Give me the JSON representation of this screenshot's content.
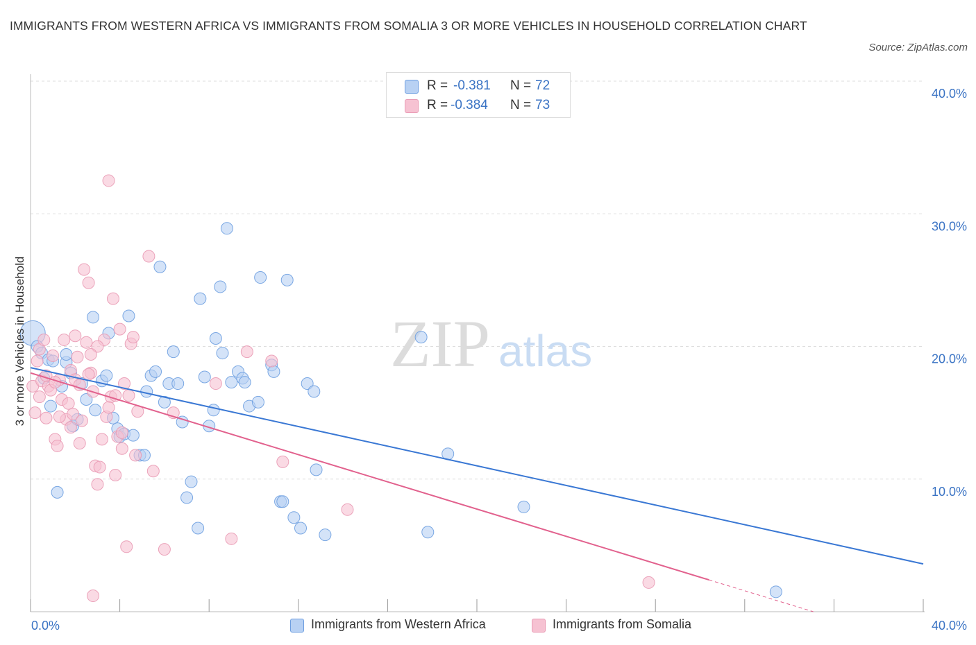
{
  "header": {
    "title": "IMMIGRANTS FROM WESTERN AFRICA VS IMMIGRANTS FROM SOMALIA 3 OR MORE VEHICLES IN HOUSEHOLD CORRELATION CHART",
    "source": "Source: ZipAtlas.com"
  },
  "watermark": {
    "zip": "ZIP",
    "atlas": "atlas"
  },
  "legend": {
    "rows": [
      {
        "r_label": "R =",
        "r_value": "-0.381",
        "n_label": "N =",
        "n_value": "72"
      },
      {
        "r_label": "R =",
        "r_value": "-0.384",
        "n_label": "N =",
        "n_value": "73"
      }
    ]
  },
  "colors": {
    "blue_fill": "#b8d1f3",
    "blue_stroke": "#6d9ee0",
    "blue_line": "#3a78d4",
    "pink_fill": "#f6c2d2",
    "pink_stroke": "#e99ab4",
    "pink_line": "#e2628e",
    "axis_text": "#3a73c4",
    "grid": "#dddddd"
  },
  "chart_data": {
    "type": "scatter",
    "title": "IMMIGRANTS FROM WESTERN AFRICA VS IMMIGRANTS FROM SOMALIA 3 OR MORE VEHICLES IN HOUSEHOLD CORRELATION CHART",
    "xlabel": "",
    "ylabel": "3 or more Vehicles in Household",
    "xlim": [
      0,
      40
    ],
    "ylim": [
      0,
      40
    ],
    "x_tick_labels": [
      "0.0%",
      "40.0%"
    ],
    "y_ticks": [
      10,
      20,
      30,
      40
    ],
    "y_tick_labels": [
      "10.0%",
      "20.0%",
      "30.0%",
      "40.0%"
    ],
    "grid": true,
    "legend_position": "top-center",
    "series": [
      {
        "name": "Immigrants from Western Africa",
        "r": -0.381,
        "n": 72,
        "trend": {
          "x": [
            0,
            40
          ],
          "y": [
            18.4,
            3.6
          ]
        },
        "points": [
          [
            0.1,
            21.0
          ],
          [
            0.3,
            20.0
          ],
          [
            0.5,
            19.5
          ],
          [
            0.6,
            17.6
          ],
          [
            0.8,
            19.0
          ],
          [
            0.9,
            15.5
          ],
          [
            1.0,
            18.9
          ],
          [
            1.2,
            9.0
          ],
          [
            1.4,
            17.0
          ],
          [
            1.6,
            18.8
          ],
          [
            1.8,
            18.0
          ],
          [
            1.9,
            14.0
          ],
          [
            2.1,
            14.5
          ],
          [
            2.3,
            17.2
          ],
          [
            2.5,
            16.0
          ],
          [
            2.8,
            22.2
          ],
          [
            2.9,
            15.2
          ],
          [
            3.2,
            17.4
          ],
          [
            3.4,
            17.8
          ],
          [
            3.5,
            21.0
          ],
          [
            3.7,
            14.6
          ],
          [
            3.9,
            13.8
          ],
          [
            4.0,
            13.2
          ],
          [
            4.2,
            13.4
          ],
          [
            4.4,
            22.3
          ],
          [
            4.6,
            13.3
          ],
          [
            4.9,
            11.8
          ],
          [
            5.1,
            11.8
          ],
          [
            5.2,
            16.6
          ],
          [
            5.4,
            17.8
          ],
          [
            5.6,
            18.1
          ],
          [
            5.8,
            26.0
          ],
          [
            6.0,
            15.8
          ],
          [
            6.2,
            17.2
          ],
          [
            6.4,
            19.6
          ],
          [
            6.6,
            17.2
          ],
          [
            6.8,
            14.3
          ],
          [
            7.0,
            8.6
          ],
          [
            7.2,
            9.8
          ],
          [
            7.5,
            6.3
          ],
          [
            7.6,
            23.6
          ],
          [
            7.8,
            17.7
          ],
          [
            8.0,
            14.0
          ],
          [
            8.2,
            15.2
          ],
          [
            8.3,
            20.6
          ],
          [
            8.5,
            24.5
          ],
          [
            8.6,
            19.5
          ],
          [
            8.8,
            28.9
          ],
          [
            9.0,
            17.3
          ],
          [
            9.3,
            18.1
          ],
          [
            9.5,
            17.6
          ],
          [
            9.6,
            17.3
          ],
          [
            9.8,
            15.5
          ],
          [
            10.2,
            15.8
          ],
          [
            10.3,
            25.2
          ],
          [
            10.8,
            18.6
          ],
          [
            10.9,
            18.1
          ],
          [
            11.2,
            8.3
          ],
          [
            11.3,
            8.3
          ],
          [
            11.5,
            25.0
          ],
          [
            11.8,
            7.1
          ],
          [
            12.1,
            6.3
          ],
          [
            12.4,
            17.2
          ],
          [
            12.7,
            16.6
          ],
          [
            12.8,
            10.7
          ],
          [
            13.2,
            5.8
          ],
          [
            17.5,
            20.7
          ],
          [
            17.8,
            6.0
          ],
          [
            18.7,
            11.9
          ],
          [
            22.1,
            7.9
          ],
          [
            33.4,
            1.5
          ],
          [
            1.6,
            19.4
          ]
        ]
      },
      {
        "name": "Immigrants from Somalia",
        "r": -0.384,
        "n": 73,
        "trend": {
          "x": [
            0,
            30.4
          ],
          "y": [
            18.0,
            2.4
          ]
        },
        "points": [
          [
            0.1,
            17.0
          ],
          [
            0.2,
            15.0
          ],
          [
            0.3,
            18.9
          ],
          [
            0.4,
            19.8
          ],
          [
            0.5,
            17.4
          ],
          [
            0.6,
            20.5
          ],
          [
            0.7,
            14.6
          ],
          [
            0.8,
            17.0
          ],
          [
            0.9,
            16.7
          ],
          [
            1.0,
            19.3
          ],
          [
            1.1,
            13.0
          ],
          [
            1.2,
            12.5
          ],
          [
            1.3,
            17.5
          ],
          [
            1.4,
            16.0
          ],
          [
            1.5,
            20.5
          ],
          [
            1.6,
            14.5
          ],
          [
            1.7,
            15.7
          ],
          [
            1.8,
            18.2
          ],
          [
            1.9,
            14.9
          ],
          [
            2.0,
            17.5
          ],
          [
            2.1,
            19.2
          ],
          [
            2.2,
            12.7
          ],
          [
            2.3,
            14.4
          ],
          [
            2.4,
            25.8
          ],
          [
            2.5,
            20.3
          ],
          [
            2.6,
            24.8
          ],
          [
            2.7,
            18.0
          ],
          [
            2.8,
            16.6
          ],
          [
            2.9,
            11.0
          ],
          [
            3.0,
            9.6
          ],
          [
            3.1,
            10.9
          ],
          [
            3.2,
            13.0
          ],
          [
            3.3,
            20.5
          ],
          [
            3.4,
            14.7
          ],
          [
            3.5,
            32.5
          ],
          [
            3.6,
            16.2
          ],
          [
            3.7,
            23.6
          ],
          [
            3.8,
            10.3
          ],
          [
            3.9,
            13.2
          ],
          [
            4.0,
            21.3
          ],
          [
            4.1,
            12.3
          ],
          [
            4.2,
            17.2
          ],
          [
            4.3,
            4.9
          ],
          [
            4.4,
            16.3
          ],
          [
            4.5,
            20.2
          ],
          [
            4.6,
            20.7
          ],
          [
            4.7,
            11.8
          ],
          [
            4.8,
            15.1
          ],
          [
            5.3,
            26.8
          ],
          [
            5.5,
            10.6
          ],
          [
            6.0,
            4.7
          ],
          [
            6.4,
            15.0
          ],
          [
            8.3,
            17.2
          ],
          [
            9.0,
            5.5
          ],
          [
            9.7,
            19.6
          ],
          [
            10.8,
            18.9
          ],
          [
            11.3,
            11.3
          ],
          [
            14.2,
            7.7
          ],
          [
            27.7,
            2.2
          ],
          [
            2.0,
            20.8
          ],
          [
            1.3,
            14.7
          ],
          [
            0.7,
            17.8
          ],
          [
            3.0,
            20.0
          ],
          [
            2.2,
            17.1
          ],
          [
            1.8,
            13.9
          ],
          [
            3.8,
            16.3
          ],
          [
            0.4,
            16.2
          ],
          [
            2.6,
            17.9
          ],
          [
            4.1,
            13.5
          ],
          [
            2.7,
            19.4
          ],
          [
            1.1,
            17.3
          ],
          [
            3.5,
            15.4
          ],
          [
            2.8,
            1.2
          ]
        ]
      }
    ]
  }
}
